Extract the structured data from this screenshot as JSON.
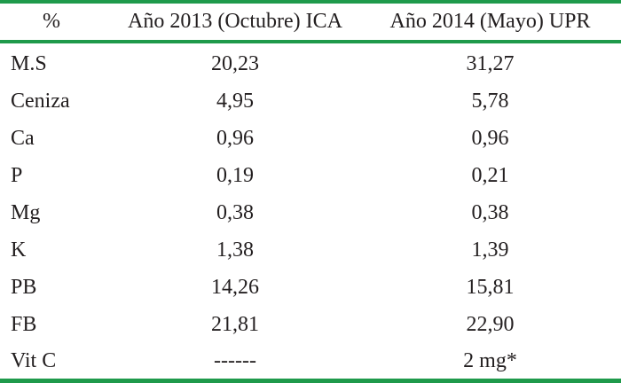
{
  "table": {
    "headers": [
      "%",
      "Año 2013 (Octubre) ICA",
      "Año 2014 (Mayo) UPR"
    ],
    "rows": [
      {
        "label": "M.S",
        "v2013": "20,23",
        "v2014": "31,27"
      },
      {
        "label": "Ceniza",
        "v2013": "4,95",
        "v2014": "5,78"
      },
      {
        "label": "Ca",
        "v2013": "0,96",
        "v2014": "0,96"
      },
      {
        "label": "P",
        "v2013": "0,19",
        "v2014": "0,21"
      },
      {
        "label": "Mg",
        "v2013": "0,38",
        "v2014": "0,38"
      },
      {
        "label": "K",
        "v2013": "1,38",
        "v2014": "1,39"
      },
      {
        "label": "PB",
        "v2013": "14,26",
        "v2014": "15,81"
      },
      {
        "label": "FB",
        "v2013": "21,81",
        "v2014": "22,90"
      },
      {
        "label": "Vit C",
        "v2013": "------",
        "v2014": "2 mg*"
      }
    ]
  },
  "colors": {
    "rule": "#1f9a4b",
    "text": "#231f20"
  }
}
